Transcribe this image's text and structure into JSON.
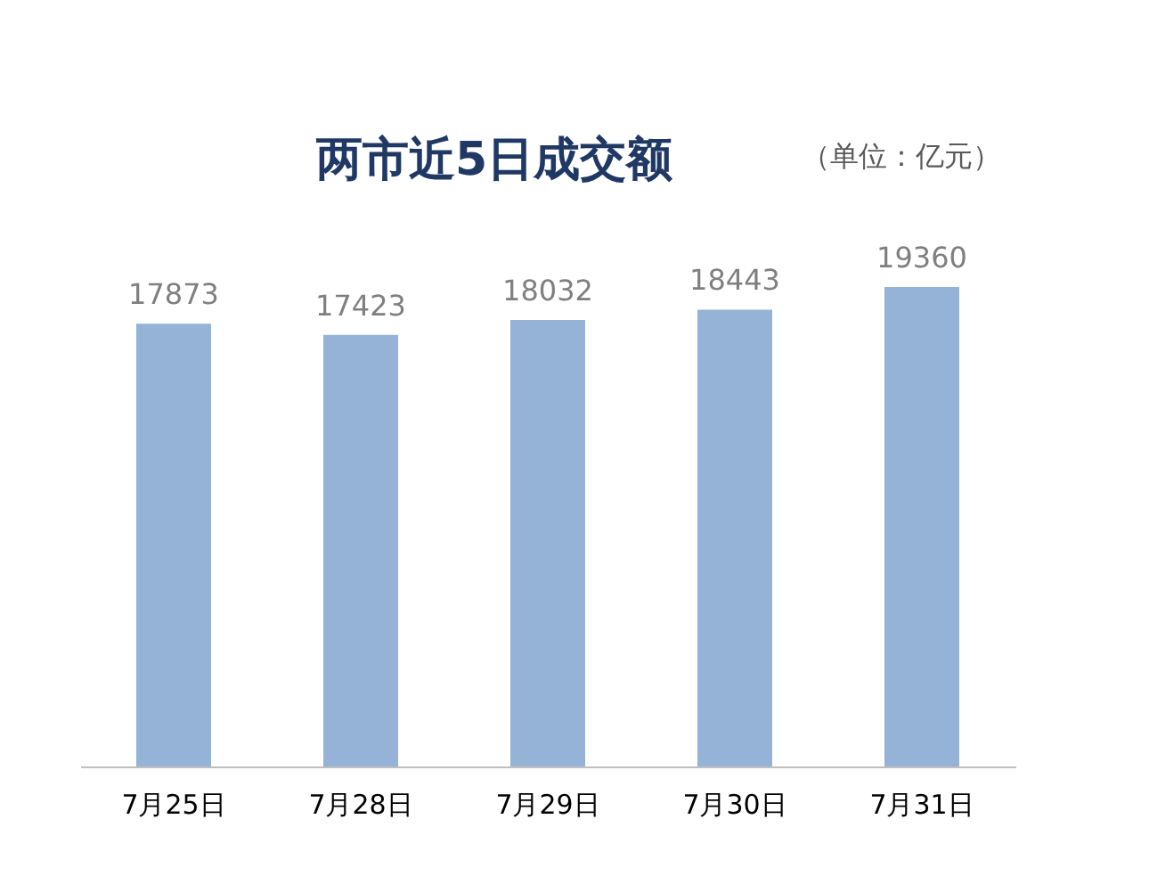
{
  "chart_data": {
    "type": "bar",
    "title": "两市近5日成交额",
    "annotations": [
      "（单位：亿元）"
    ],
    "categories": [
      "7月25日",
      "7月28日",
      "7月29日",
      "7月30日",
      "7月31日"
    ],
    "values": [
      17873,
      17423,
      18032,
      18443,
      19360
    ],
    "color": "#95b3d7",
    "data_labels": true,
    "grid": false
  }
}
